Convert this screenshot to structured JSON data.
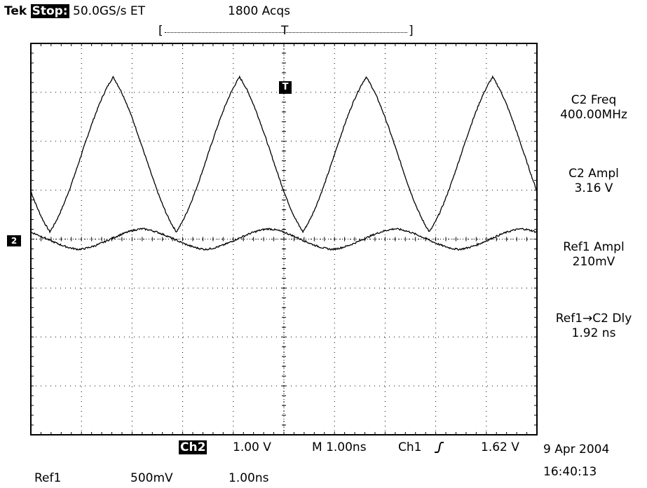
{
  "header": {
    "brand": "Tek",
    "state": "Stop:",
    "sample_rate": "50.0GS/s ET",
    "acquisitions": "1800 Acqs"
  },
  "record_bar": {
    "left_bracket": "[",
    "trigger_label": "T",
    "right_bracket": "]"
  },
  "markers": {
    "trigger_marker": "T",
    "channel_marker": "2"
  },
  "measurements": [
    {
      "label": "C2 Freq",
      "value": "400.00MHz"
    },
    {
      "label": "C2 Ampl",
      "value": "3.16 V"
    },
    {
      "label": "Ref1 Ampl",
      "value": "210mV"
    },
    {
      "label": "Ref1→C2 Dly",
      "value": "1.92 ns"
    }
  ],
  "footer": {
    "channel": "Ch2",
    "volts_per_div": "1.00 V",
    "timebase": "M 1.00ns",
    "trigger_source": "Ch1",
    "trigger_level": "1.62 V",
    "date": "9 Apr 2004",
    "time": "16:40:13",
    "ref_name": "Ref1",
    "ref_scale": "500mV",
    "ref_timebase": "1.00ns"
  },
  "chart_data": {
    "type": "line",
    "grid": true,
    "x_divisions": 10,
    "y_divisions": 8,
    "xlim": [
      -5,
      5
    ],
    "ylim": [
      -4,
      4
    ],
    "series": [
      {
        "name": "C2",
        "color": "#000000",
        "frequency_cycles_per_div": 0.4,
        "amplitude_div": 3.16,
        "offset_div": 1.73,
        "phase_cycles": 0.35,
        "peak_sharpness": 1.15
      },
      {
        "name": "Ref1",
        "color": "#000000",
        "frequency_cycles_per_div": 0.4,
        "amplitude_div": 0.42,
        "offset_div": 0.0,
        "phase_cycles": 0.12,
        "peak_sharpness": 1.0
      }
    ]
  }
}
